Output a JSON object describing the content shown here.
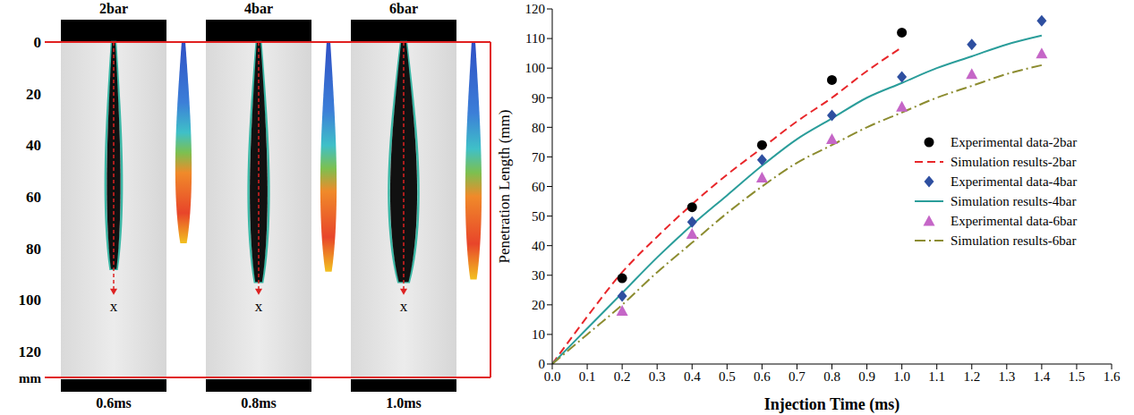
{
  "image_panel": {
    "unit": "mm",
    "ylim": [
      0,
      130
    ],
    "yticks": [
      0,
      20,
      40,
      60,
      80,
      100,
      120
    ],
    "panels": [
      {
        "pressure": "2bar",
        "time": "0.6ms",
        "axis_label": "x",
        "spray_tip_mm": 88,
        "simulated_tip_mm": 78,
        "arrow_end_mm": 98
      },
      {
        "pressure": "4bar",
        "time": "0.8ms",
        "axis_label": "x",
        "spray_tip_mm": 93,
        "simulated_tip_mm": 89,
        "arrow_end_mm": 98
      },
      {
        "pressure": "6bar",
        "time": "1.0ms",
        "axis_label": "x",
        "spray_tip_mm": 93,
        "simulated_tip_mm": 92,
        "arrow_end_mm": 98
      }
    ]
  },
  "chart_data": {
    "type": "line",
    "x_label": "Injection Time (ms)",
    "y_label": "Penetration Length (mm)",
    "xlim": [
      0,
      1.6
    ],
    "xticks": [
      {
        "value": 0,
        "label": "0.0"
      },
      0.1,
      0.2,
      0.3,
      0.4,
      0.5,
      0.6,
      0.7,
      0.8,
      0.9,
      {
        "value": 1,
        "label": "1.0"
      },
      1.1,
      1.2,
      1.3,
      1.4,
      1.5,
      1.6
    ],
    "ylim": [
      0,
      120
    ],
    "yticks": [
      0,
      10,
      20,
      30,
      40,
      50,
      60,
      70,
      80,
      90,
      100,
      110,
      120
    ],
    "legend": "right",
    "series": [
      {
        "name": "Experimental data-2bar",
        "type": "scatter",
        "marker": "circle",
        "color": "#000000",
        "x": [
          0.2,
          0.4,
          0.6,
          0.8,
          1.0
        ],
        "values": [
          29,
          53,
          74,
          96,
          112
        ]
      },
      {
        "name": "Simulation results-2bar",
        "type": "line",
        "line_style": "dashed",
        "color": "#e8262a",
        "x": [
          0,
          0.1,
          0.2,
          0.3,
          0.4,
          0.5,
          0.6,
          0.7,
          0.8,
          0.9,
          1.0
        ],
        "values": [
          0,
          16,
          31,
          43,
          54,
          64,
          73,
          82,
          90,
          99,
          107
        ]
      },
      {
        "name": "Experimental data-4bar",
        "type": "scatter",
        "marker": "diamond",
        "color": "#2e4fa0",
        "x": [
          0.2,
          0.4,
          0.6,
          0.8,
          1.0,
          1.2,
          1.4
        ],
        "values": [
          23,
          48,
          69,
          84,
          97,
          108,
          116
        ]
      },
      {
        "name": "Simulation results-4bar",
        "type": "line",
        "line_style": "solid",
        "color": "#2a9d9a",
        "x": [
          0,
          0.1,
          0.2,
          0.3,
          0.4,
          0.5,
          0.6,
          0.7,
          0.8,
          0.9,
          1.0,
          1.1,
          1.2,
          1.3,
          1.4
        ],
        "values": [
          0,
          12,
          24,
          36,
          47,
          57,
          67,
          76,
          83,
          90,
          95,
          100,
          104,
          108,
          111
        ]
      },
      {
        "name": "Experimental data-6bar",
        "type": "scatter",
        "marker": "triangle",
        "color": "#c566c7",
        "x": [
          0.2,
          0.4,
          0.6,
          0.8,
          1.0,
          1.2,
          1.4
        ],
        "values": [
          18,
          44,
          63,
          76,
          87,
          98,
          105
        ]
      },
      {
        "name": "Simulation results-6bar",
        "type": "line",
        "line_style": "dashdot",
        "color": "#8c8c30",
        "x": [
          0,
          0.1,
          0.2,
          0.3,
          0.4,
          0.5,
          0.6,
          0.7,
          0.8,
          0.9,
          1.0,
          1.1,
          1.2,
          1.3,
          1.4
        ],
        "values": [
          0,
          10,
          20,
          31,
          41,
          51,
          60,
          68,
          74,
          80,
          85,
          90,
          94,
          98,
          101
        ]
      }
    ]
  }
}
